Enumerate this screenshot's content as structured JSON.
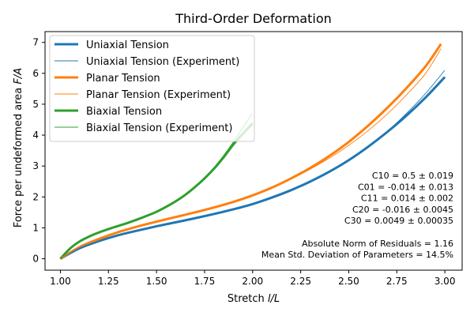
{
  "chart_data": {
    "type": "line",
    "title": "Third-Order Deformation",
    "xlabel": "Stretch l/L",
    "xlabel_parts": [
      "Stretch ",
      "l/L"
    ],
    "ylabel": "Force per undeformed area F/A",
    "ylabel_parts": [
      "Force per undeformed area ",
      "F/A"
    ],
    "xlim": [
      0.92,
      3.09
    ],
    "ylim": [
      -0.37,
      7.35
    ],
    "xticks": [
      1.0,
      1.25,
      1.5,
      1.75,
      2.0,
      2.25,
      2.5,
      2.75,
      3.0
    ],
    "xtick_labels": [
      "1.00",
      "1.25",
      "1.50",
      "1.75",
      "2.00",
      "2.25",
      "2.50",
      "2.75",
      "3.00"
    ],
    "yticks": [
      0,
      1,
      2,
      3,
      4,
      5,
      6,
      7
    ],
    "ytick_labels": [
      "0",
      "1",
      "2",
      "3",
      "4",
      "5",
      "6",
      "7"
    ],
    "grid": false,
    "legend_position": "top-left",
    "series": [
      {
        "name": "Uniaxial Tension",
        "color": "#1f77b4",
        "style": "thick",
        "x": [
          1.0,
          1.1,
          1.2,
          1.3,
          1.4,
          1.5,
          1.6,
          1.7,
          1.8,
          1.9,
          2.0,
          2.1,
          2.2,
          2.3,
          2.4,
          2.5,
          2.6,
          2.7,
          2.8,
          2.9,
          3.0
        ],
        "y": [
          0.0,
          0.34,
          0.57,
          0.76,
          0.91,
          1.05,
          1.18,
          1.31,
          1.45,
          1.6,
          1.77,
          1.98,
          2.22,
          2.5,
          2.82,
          3.19,
          3.62,
          4.1,
          4.63,
          5.22,
          5.88
        ]
      },
      {
        "name": "Uniaxial Tension (Experiment)",
        "color": "#1f77b4",
        "style": "thin",
        "x": [
          1.0,
          1.1,
          1.2,
          1.3,
          1.4,
          1.5,
          1.6,
          1.7,
          1.8,
          1.9,
          2.0,
          2.1,
          2.2,
          2.3,
          2.4,
          2.5,
          2.6,
          2.7,
          2.8,
          2.9,
          3.0
        ],
        "y": [
          0.0,
          0.35,
          0.58,
          0.77,
          0.92,
          1.06,
          1.19,
          1.32,
          1.46,
          1.61,
          1.78,
          1.98,
          2.21,
          2.48,
          2.8,
          3.18,
          3.62,
          4.12,
          4.7,
          5.35,
          6.1
        ]
      },
      {
        "name": "Planar Tension",
        "color": "#ff7f0e",
        "style": "thick",
        "x": [
          1.0,
          1.1,
          1.2,
          1.3,
          1.4,
          1.5,
          1.6,
          1.7,
          1.8,
          1.9,
          2.0,
          2.1,
          2.2,
          2.3,
          2.4,
          2.5,
          2.6,
          2.7,
          2.8,
          2.9,
          2.98
        ],
        "y": [
          0.0,
          0.38,
          0.64,
          0.86,
          1.04,
          1.2,
          1.35,
          1.5,
          1.66,
          1.84,
          2.05,
          2.3,
          2.6,
          2.94,
          3.33,
          3.78,
          4.3,
          4.88,
          5.52,
          6.23,
          6.95
        ]
      },
      {
        "name": "Planar Tension (Experiment)",
        "color": "#ff7f0e",
        "style": "thin",
        "x": [
          1.0,
          1.1,
          1.2,
          1.3,
          1.4,
          1.5,
          1.6,
          1.7,
          1.8,
          1.9,
          2.0,
          2.1,
          2.2,
          2.3,
          2.4,
          2.5,
          2.6,
          2.7,
          2.8,
          2.9,
          2.98
        ],
        "y": [
          0.0,
          0.4,
          0.66,
          0.88,
          1.06,
          1.22,
          1.37,
          1.52,
          1.68,
          1.86,
          2.06,
          2.31,
          2.58,
          2.9,
          3.26,
          3.67,
          4.14,
          4.68,
          5.3,
          6.0,
          6.8
        ]
      },
      {
        "name": "Biaxial Tension",
        "color": "#2ca02c",
        "style": "thick",
        "x": [
          1.0,
          1.05,
          1.1,
          1.15,
          1.2,
          1.25,
          1.3,
          1.35,
          1.4,
          1.45,
          1.5,
          1.55,
          1.6,
          1.65,
          1.7,
          1.75,
          1.8,
          1.85,
          1.9,
          1.95,
          2.0
        ],
        "y": [
          0.0,
          0.33,
          0.56,
          0.72,
          0.85,
          0.96,
          1.06,
          1.16,
          1.27,
          1.39,
          1.52,
          1.68,
          1.86,
          2.07,
          2.32,
          2.6,
          2.92,
          3.29,
          3.7,
          4.05,
          4.38
        ]
      },
      {
        "name": "Biaxial Tension (Experiment)",
        "color": "#2ca02c",
        "style": "thin",
        "x": [
          1.0,
          1.05,
          1.1,
          1.15,
          1.2,
          1.25,
          1.3,
          1.35,
          1.4,
          1.45,
          1.5,
          1.55,
          1.6,
          1.65,
          1.7,
          1.75,
          1.8,
          1.85,
          1.9,
          1.95,
          2.0
        ],
        "y": [
          0.0,
          0.35,
          0.58,
          0.74,
          0.86,
          0.97,
          1.07,
          1.17,
          1.28,
          1.4,
          1.53,
          1.69,
          1.87,
          2.08,
          2.33,
          2.62,
          2.96,
          3.35,
          3.78,
          4.25,
          4.72
        ]
      }
    ],
    "annotations": [
      "C10 = 0.5 ± 0.019",
      "C01 = -0.014 ± 0.013",
      "C11 = 0.014 ± 0.002",
      "C20 = -0.016 ± 0.0045",
      "C30 = 0.0049 ± 0.00035",
      "",
      "Absolute Norm of Residuals =  1.16",
      "Mean Std. Deviation of Parameters =  14.5%"
    ]
  }
}
